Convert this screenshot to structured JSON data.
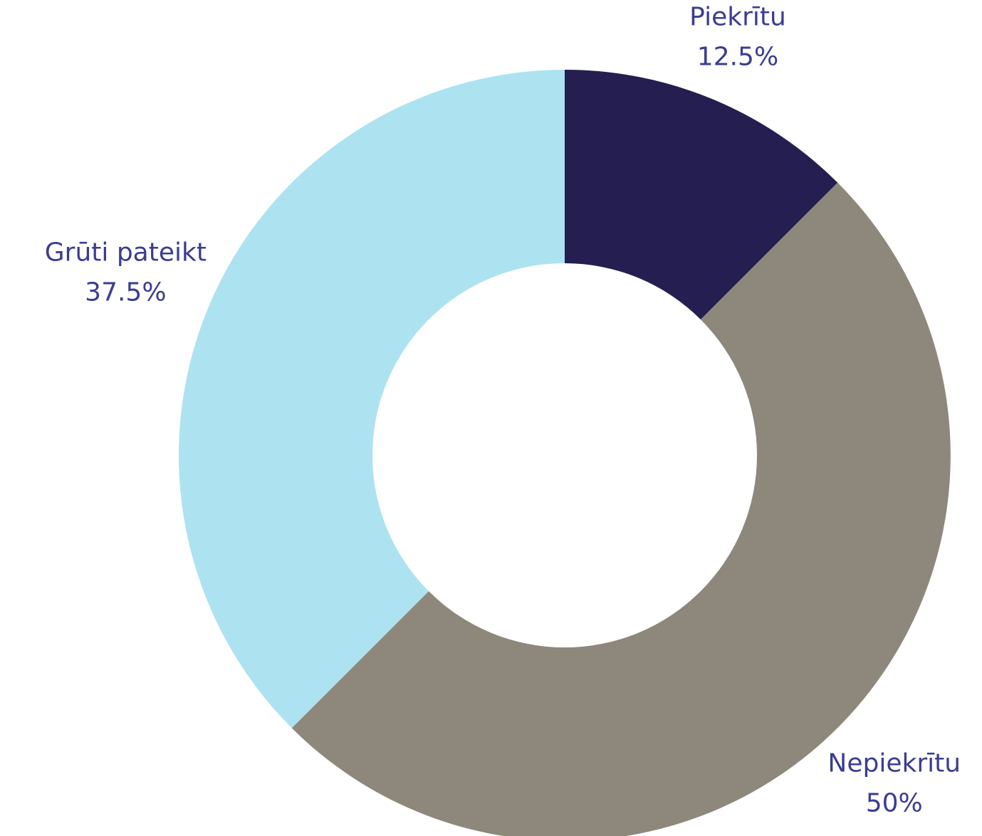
{
  "chart_data": {
    "type": "donut",
    "categories": [
      "Piekrītu",
      "Nepiekrītu",
      "Grūti pateikt"
    ],
    "values": [
      12.5,
      50,
      37.5
    ],
    "value_labels": [
      "12.5%",
      "50%",
      "37.5%"
    ],
    "colors": [
      "#251e50",
      "#8e877b",
      "#ade3f0"
    ]
  }
}
